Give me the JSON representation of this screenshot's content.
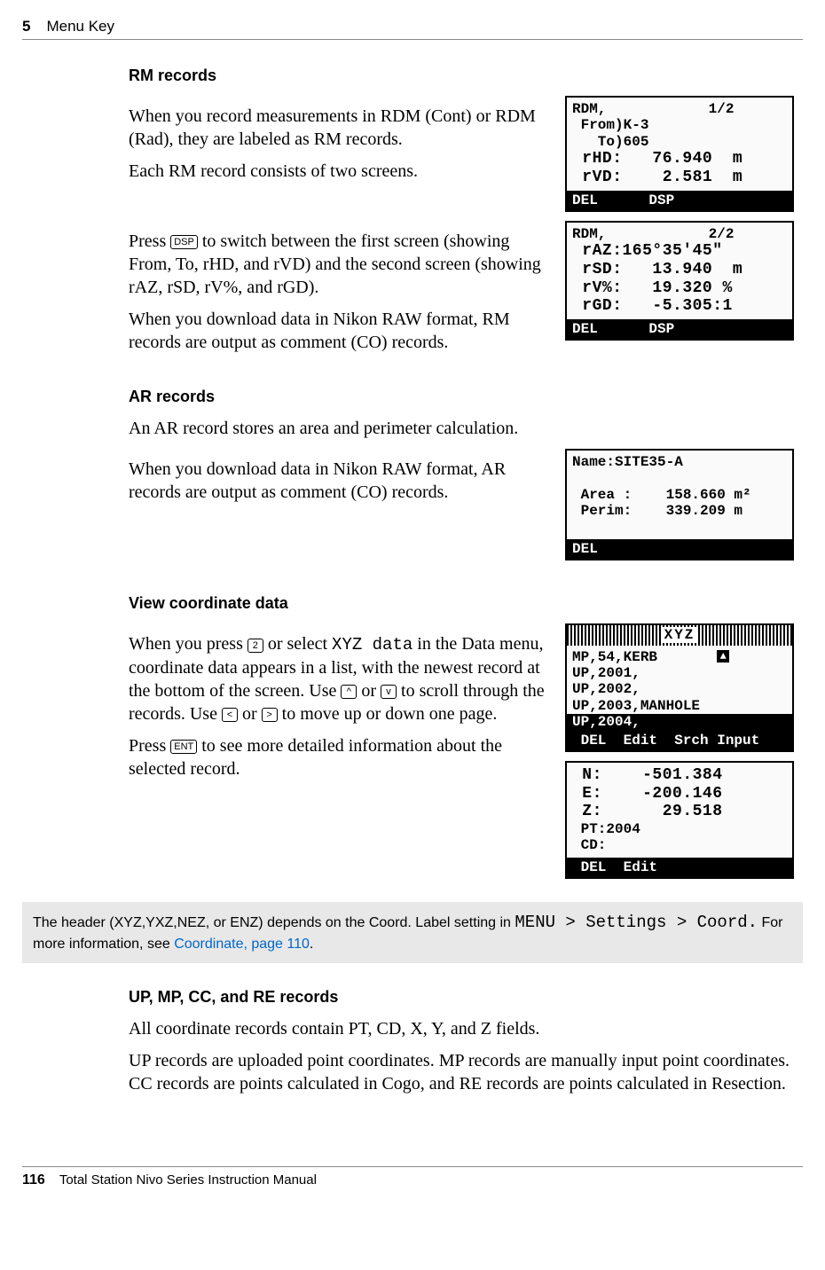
{
  "header": {
    "chapter": "5",
    "title": "Menu Key"
  },
  "rm": {
    "heading": "RM records",
    "p1": "When you record measurements in RDM (Cont) or RDM (Rad), they are labeled as RM records.",
    "p2": "Each RM record consists of two screens.",
    "p3a": "Press ",
    "p3b": " to switch between the first screen (showing From, To, rHD, and rVD) and the second screen (showing rAZ, rSD, rV%, and rGD).",
    "p4": "When you download data in Nikon RAW format, RM records are output as comment (CO) records.",
    "key_dsp": "DSP",
    "lcd1": {
      "line1": "RDM,            1/2",
      "line2": " From)K-3",
      "line3": "   To)605",
      "line4": " rHD:   76.940  m",
      "line5": " rVD:    2.581  m",
      "bar": "DEL      DSP"
    },
    "lcd2": {
      "line1": "RDM,            2/2",
      "line2": " rAZ:165°35'45\"",
      "line3": " rSD:   13.940  m",
      "line4": " rV%:   19.320 %",
      "line5": " rGD:   -5.305:1",
      "bar": "DEL      DSP"
    }
  },
  "ar": {
    "heading": "AR records",
    "p1": "An AR record stores an area and perimeter calculation.",
    "p2": "When you download data in Nikon RAW format, AR records are output as comment (CO) records.",
    "lcd": {
      "line1": "Name:SITE35-A",
      "blank": " ",
      "line2": " Area :    158.660 m²",
      "line3": " Perim:    339.209 m",
      "blank2": " ",
      "bar": "DEL"
    }
  },
  "view": {
    "heading": "View coordinate data",
    "p1a": "When you press ",
    "key_2": "2",
    "p1b": " or select ",
    "xyz_data": "XYZ data",
    "p1c": " in the Data menu, coordinate data appears in a list, with the newest record at the bottom of the screen. Use ",
    "key_up": "^",
    "p1d": " or ",
    "key_dn": "v",
    "p1e": " to scroll through the records. Use ",
    "key_l": "<",
    "p1f": " or ",
    "key_r": ">",
    "p1g": " to move up or down one page.",
    "p2a": "Press ",
    "key_ent": "ENT",
    "p2b": " to see more detailed information about the selected record.",
    "lcd1": {
      "header": "XYZ",
      "line1": "MP,54,KERB",
      "line2": "UP,2001,",
      "line3": "UP,2002,",
      "line4": "UP,2003,MANHOLE",
      "sel": "UP,2004,",
      "bar": " DEL  Edit  Srch Input"
    },
    "lcd2": {
      "line1": " N:    -501.384",
      "line2": " E:    -200.146",
      "line3": " Z:      29.518",
      "line4": " PT:2004",
      "line5": " CD:",
      "bar": " DEL  Edit"
    }
  },
  "note": {
    "t1": "The header (XYZ,YXZ,NEZ, or ENZ) depends on the Coord. Label setting in ",
    "menu": "MENU > Settings > Coord.",
    "t2": " For more information, see ",
    "link": "Coordinate, page 110",
    "t3": "."
  },
  "up": {
    "heading": "UP, MP, CC, and RE records",
    "p1": "All coordinate records contain PT, CD, X, Y, and Z fields.",
    "p2": "UP records are uploaded point coordinates. MP records are manually input point coordinates. CC records are points calculated in Cogo, and RE records are points calculated in Resection."
  },
  "footer": {
    "page": "116",
    "title": "Total Station Nivo Series Instruction Manual"
  }
}
